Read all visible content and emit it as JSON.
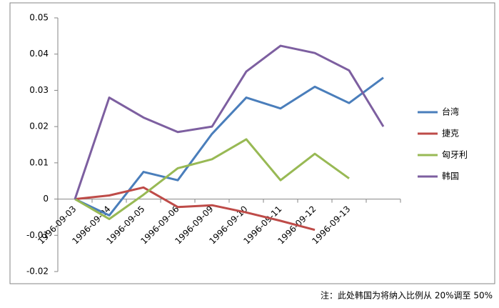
{
  "chart_data": {
    "type": "line",
    "categories": [
      "1996-09-03",
      "1996-09-04",
      "1996-09-05",
      "1996-09-06",
      "1996-09-09",
      "1996-09-10",
      "1996-09-11",
      "1996-09-12",
      "1996-09-13",
      null
    ],
    "series": [
      {
        "name": "台湾",
        "color": "#4a7ebb",
        "values": [
          0,
          -0.0045,
          0.0075,
          0.0052,
          0.018,
          0.028,
          0.025,
          0.031,
          0.0265,
          0.0335
        ]
      },
      {
        "name": "捷克",
        "color": "#be4b48",
        "values": [
          0,
          0.001,
          0.0032,
          -0.0022,
          -0.0017,
          -0.0037,
          -0.006,
          -0.0085,
          null,
          null
        ]
      },
      {
        "name": "匈牙利",
        "color": "#98b954",
        "values": [
          0,
          -0.0055,
          0.0012,
          0.0085,
          0.011,
          0.0165,
          0.0052,
          0.0125,
          0.0057,
          null
        ]
      },
      {
        "name": "韩国",
        "color": "#7d5fa0",
        "values": [
          0,
          0.028,
          0.0225,
          0.0185,
          0.02,
          0.0352,
          0.0423,
          0.0403,
          0.0355,
          0.02
        ]
      }
    ],
    "ylim": [
      -0.02,
      0.05
    ],
    "yticks": [
      -0.02,
      -0.01,
      0,
      0.01,
      0.02,
      0.03,
      0.04,
      0.05
    ],
    "legend": "right",
    "note": "注：此处韩国为将纳入比例从 20%调至 50%"
  }
}
